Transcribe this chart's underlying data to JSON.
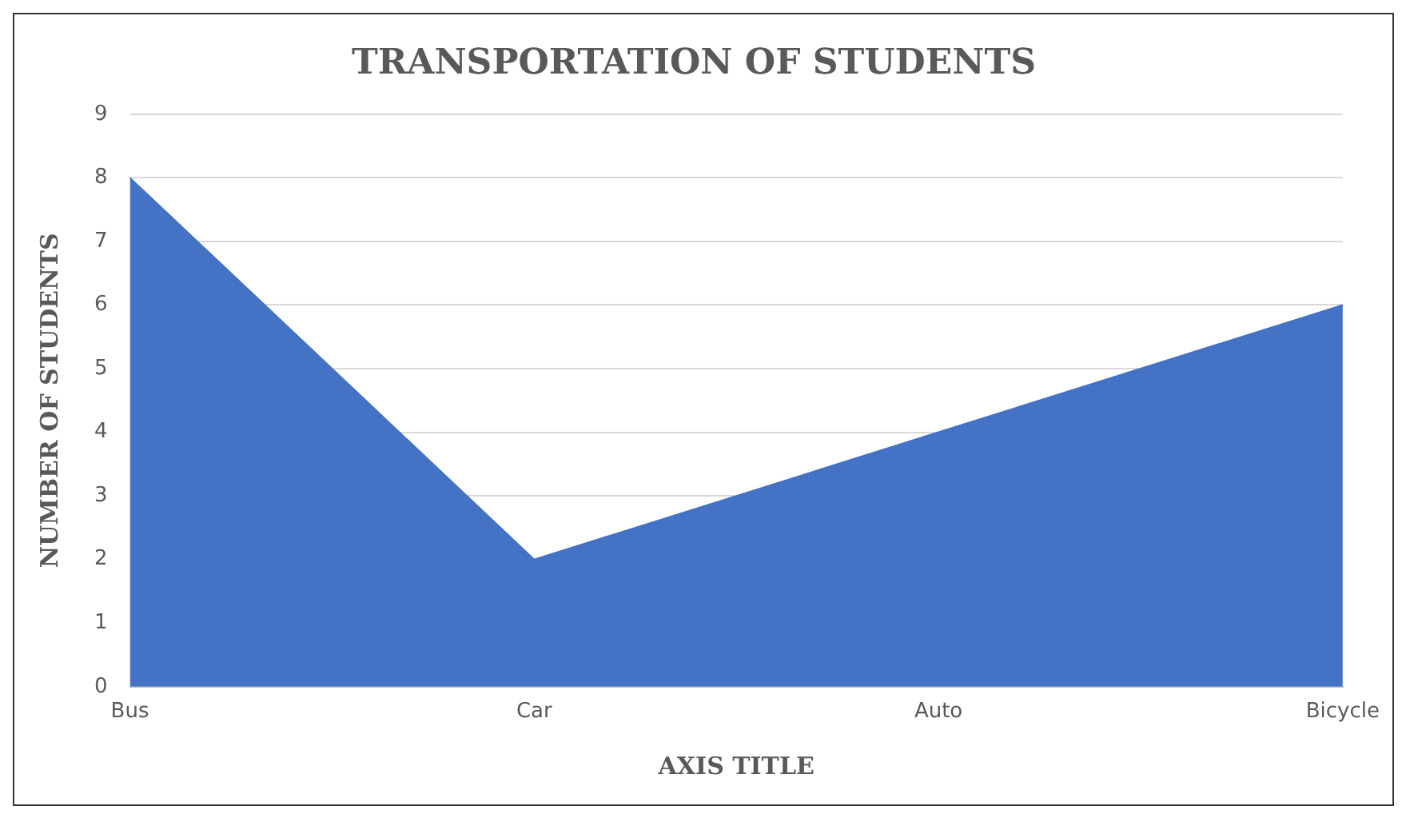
{
  "chart_data": {
    "type": "area",
    "title": "TRANSPORTATION OF STUDENTS",
    "xlabel": "AXIS TITLE",
    "ylabel": "NUMBER OF STUDENTS",
    "categories": [
      "Bus",
      "Car",
      "Auto",
      "Bicycle"
    ],
    "values": [
      8,
      2,
      4,
      6
    ],
    "color": "#4472c4",
    "ylim": [
      0,
      9
    ],
    "yticks": [
      0,
      1,
      2,
      3,
      4,
      5,
      6,
      7,
      8,
      9
    ],
    "grid": "y",
    "legend": false
  }
}
